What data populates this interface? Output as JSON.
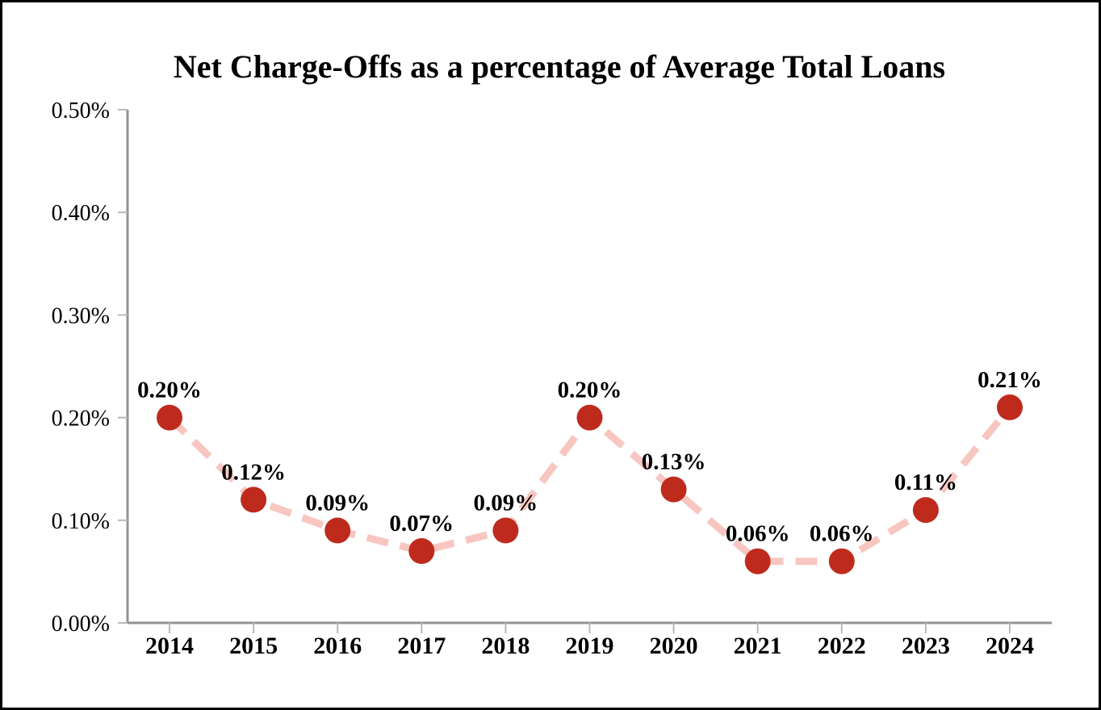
{
  "window": {
    "background_color": "#ffffff",
    "frame_border_color": "#000000"
  },
  "chart_data": {
    "type": "line",
    "title": "Net Charge-Offs as a percentage of Average Total Loans",
    "categories": [
      "2014",
      "2015",
      "2016",
      "2017",
      "2018",
      "2019",
      "2020",
      "2021",
      "2022",
      "2023",
      "2024"
    ],
    "series": [
      {
        "name": "Net Charge-Offs as a percentage of Average Total Loans",
        "values": [
          0.2,
          0.12,
          0.09,
          0.07,
          0.09,
          0.2,
          0.13,
          0.06,
          0.06,
          0.11,
          0.21
        ],
        "point_labels": [
          "0.20%",
          "0.12%",
          "0.09%",
          "0.07%",
          "0.09%",
          "0.20%",
          "0.13%",
          "0.06%",
          "0.06%",
          "0.11%",
          "0.21%"
        ]
      }
    ],
    "xlabel": "",
    "ylabel": "",
    "y_axis": {
      "min": 0.0,
      "max": 0.5,
      "step": 0.1,
      "tick_labels": [
        "0.00%",
        "0.10%",
        "0.20%",
        "0.30%",
        "0.40%",
        "0.50%"
      ]
    },
    "grid": false,
    "legend_position": "none",
    "line_style": "dashed",
    "marker_style": "circle",
    "colors": {
      "marker": "#BE2B1D",
      "line": "#F8C6C0",
      "axis": "#939393",
      "tick": "#B8B8B8",
      "text": "#000000"
    }
  }
}
